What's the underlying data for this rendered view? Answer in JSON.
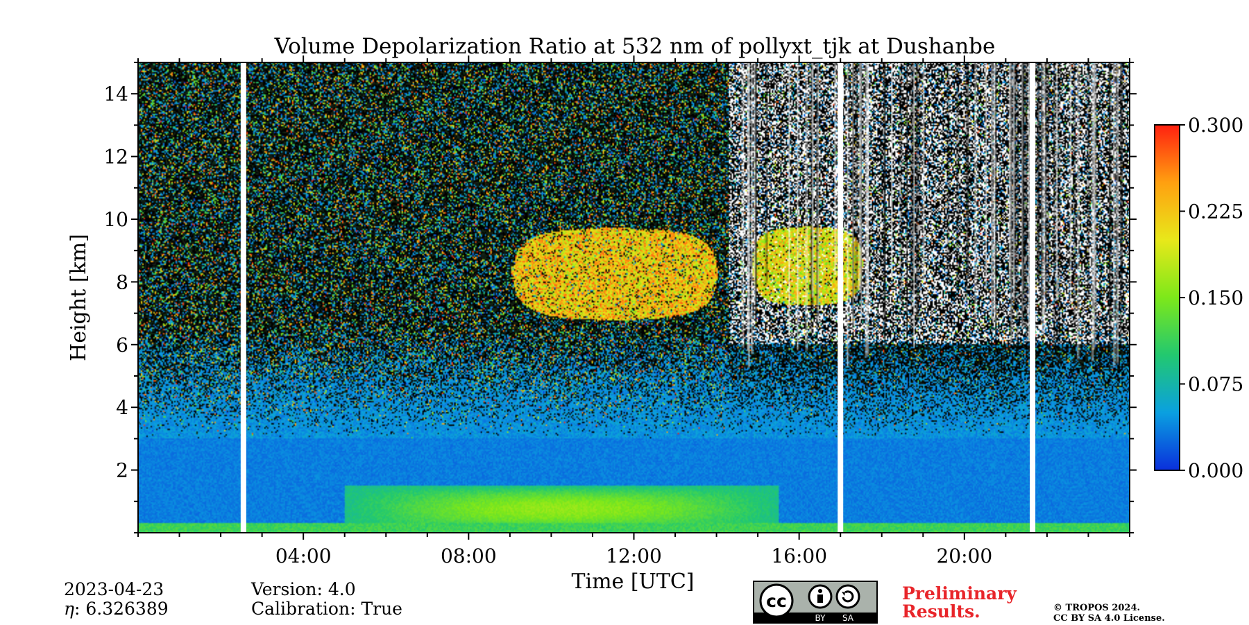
{
  "chart_data": {
    "type": "heatmap",
    "title": "Volume Depolarization Ratio at 532 nm of pollyxt_tjk at Dushanbe",
    "xlabel": "Time [UTC]",
    "ylabel": "Height [km]",
    "xlim_hours": [
      0,
      24
    ],
    "ylim_km": [
      0,
      15
    ],
    "x_ticks": [
      {
        "value": 4,
        "label": "04:00"
      },
      {
        "value": 8,
        "label": "08:00"
      },
      {
        "value": 12,
        "label": "12:00"
      },
      {
        "value": 16,
        "label": "16:00"
      },
      {
        "value": 20,
        "label": "20:00"
      }
    ],
    "y_ticks": [
      {
        "value": 2,
        "label": "2"
      },
      {
        "value": 4,
        "label": "4"
      },
      {
        "value": 6,
        "label": "6"
      },
      {
        "value": 8,
        "label": "8"
      },
      {
        "value": 10,
        "label": "10"
      },
      {
        "value": 12,
        "label": "12"
      },
      {
        "value": 14,
        "label": "14"
      }
    ],
    "colorbar": {
      "range": [
        0.0,
        0.3
      ],
      "ticks": [
        {
          "value": 0.0,
          "label": "0.000"
        },
        {
          "value": 0.075,
          "label": "0.075"
        },
        {
          "value": 0.15,
          "label": "0.150"
        },
        {
          "value": 0.225,
          "label": "0.225"
        },
        {
          "value": 0.3,
          "label": "0.300"
        }
      ],
      "colors": [
        "#0a2fdc",
        "#0aa0e0",
        "#22c870",
        "#7de81a",
        "#e8e81a",
        "#ffa010",
        "#ff2010"
      ]
    },
    "data_gaps_hours": [
      2.55,
      17.0,
      21.65
    ],
    "features": [
      {
        "name": "cirrus cloud",
        "time_range": [
          8.6,
          14.5
        ],
        "height_range_km": [
          6.5,
          10.0
        ],
        "depol": 0.22
      },
      {
        "name": "cirrus cloud",
        "time_range": [
          14.6,
          17.8
        ],
        "height_range_km": [
          7.0,
          10.0
        ],
        "depol": 0.2
      },
      {
        "name": "dust layer",
        "time_range": [
          5.0,
          15.5
        ],
        "height_range_km": [
          0.0,
          1.5
        ],
        "depol": 0.12
      },
      {
        "name": "boundary layer",
        "time_range": [
          0,
          24
        ],
        "height_range_km": [
          0.0,
          3.0
        ],
        "depol": 0.03
      }
    ]
  },
  "footer": {
    "date": "2023-04-23",
    "eta_label": "η",
    "eta_value": ": 6.326389",
    "version": "Version: 4.0",
    "calibration": "Calibration: True",
    "preliminary": [
      "Preliminary",
      "Results."
    ],
    "copyright": [
      "© TROPOS 2024.",
      "CC BY SA 4.0 License."
    ],
    "license_badge": {
      "cc": "cc",
      "by": "BY",
      "sa": "SA"
    }
  }
}
